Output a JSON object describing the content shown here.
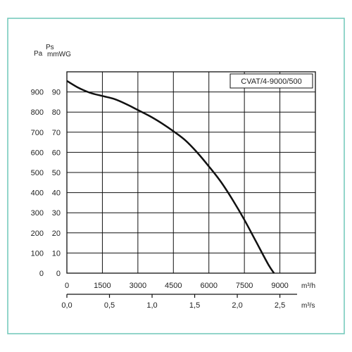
{
  "chart_data": {
    "type": "line",
    "title": "CVAT/4-9000/500",
    "y_axis_left": {
      "unit_label": "Pa",
      "ticks": [
        0,
        100,
        200,
        300,
        400,
        500,
        600,
        700,
        800,
        900
      ],
      "range": [
        0,
        1000
      ]
    },
    "y_axis_right": {
      "unit_label_top": "Ps",
      "unit_label_bottom": "mmWG",
      "ticks": [
        0,
        10,
        20,
        30,
        40,
        50,
        60,
        70,
        80,
        90
      ],
      "range": [
        0,
        100
      ]
    },
    "x_axis_primary": {
      "unit_label": "m³/h",
      "ticks": [
        "0",
        "1500",
        "3000",
        "4500",
        "6000",
        "7500",
        "9000"
      ],
      "range": [
        0,
        10500
      ]
    },
    "x_axis_secondary": {
      "unit_label": "m³/s",
      "ticks": [
        "0,0",
        "0,5",
        "1,0",
        "1,5",
        "2,0",
        "2,5"
      ]
    },
    "grid": true,
    "series": [
      {
        "x": [
          0,
          500,
          1000,
          1500,
          2000,
          2500,
          3000,
          3500,
          4000,
          4500,
          5000,
          5500,
          6000,
          6500,
          7000,
          7500,
          8000,
          8500,
          8750
        ],
        "y": [
          955,
          920,
          895,
          880,
          865,
          840,
          810,
          780,
          745,
          705,
          660,
          600,
          530,
          455,
          365,
          265,
          155,
          45,
          0
        ]
      }
    ]
  }
}
